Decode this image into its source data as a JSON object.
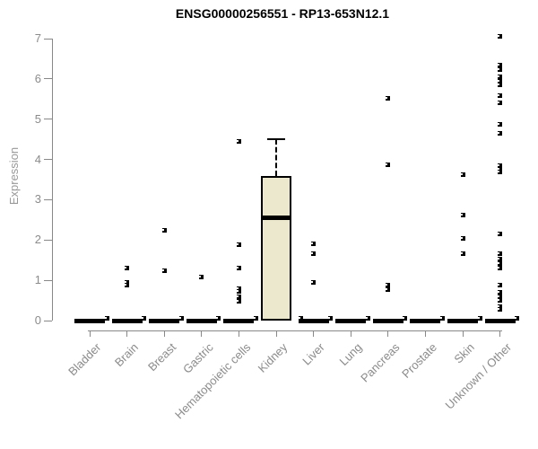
{
  "chart_data": {
    "type": "boxplot",
    "title": "ENSG00000256551 - RP13-653N12.1",
    "xlabel": "",
    "ylabel": "Expression",
    "ylim": [
      0,
      7
    ],
    "yticks": [
      0,
      1,
      2,
      3,
      4,
      5,
      6,
      7
    ],
    "grid": false,
    "legend": "none",
    "categories": [
      "Bladder",
      "Brain",
      "Breast",
      "Gastric",
      "Hematopoietic cells",
      "Kidney",
      "Liver",
      "Lung",
      "Pancreas",
      "Prostate",
      "Skin",
      "Unknown / Other"
    ],
    "groups": [
      {
        "label": "Bladder",
        "box": {
          "lo": 0,
          "q1": 0,
          "median": 0,
          "q3": 0,
          "hi": 0
        },
        "points": [
          {
            "v": 0.05,
            "dx": 19
          }
        ]
      },
      {
        "label": "Brain",
        "box": {
          "lo": 0,
          "q1": 0,
          "median": 0,
          "q3": 0,
          "hi": 0
        },
        "points": [
          {
            "v": 1.31
          },
          {
            "v": 0.95
          },
          {
            "v": 0.88
          },
          {
            "v": 0.05,
            "dx": 19
          }
        ]
      },
      {
        "label": "Breast",
        "box": {
          "lo": 0,
          "q1": 0,
          "median": 0,
          "q3": 0,
          "hi": 0
        },
        "points": [
          {
            "v": 2.23
          },
          {
            "v": 1.23
          },
          {
            "v": 0.05,
            "dx": 19
          }
        ]
      },
      {
        "label": "Gastric",
        "box": {
          "lo": 0,
          "q1": 0,
          "median": 0,
          "q3": 0,
          "hi": 0
        },
        "points": [
          {
            "v": 1.09
          },
          {
            "v": 0.05,
            "dx": 19
          }
        ]
      },
      {
        "label": "Hematopoietic cells",
        "box": {
          "lo": 0,
          "q1": 0,
          "median": 0,
          "q3": 0,
          "hi": 0
        },
        "points": [
          {
            "v": 4.45
          },
          {
            "v": 1.88
          },
          {
            "v": 1.31
          },
          {
            "v": 0.8
          },
          {
            "v": 0.72
          },
          {
            "v": 0.6
          },
          {
            "v": 0.48
          },
          {
            "v": 0.05,
            "dx": 19
          }
        ]
      },
      {
        "label": "Kidney",
        "box": {
          "lo": 0,
          "q1": 0,
          "median": 2.55,
          "q3": 3.6,
          "hi": 4.5
        },
        "points": [
          {
            "v": 0.05,
            "dx": 27
          }
        ]
      },
      {
        "label": "Liver",
        "box": {
          "lo": 0,
          "q1": 0,
          "median": 0,
          "q3": 0,
          "hi": 0
        },
        "points": [
          {
            "v": 1.9
          },
          {
            "v": 1.67
          },
          {
            "v": 0.94
          },
          {
            "v": 0.05,
            "dx": 19
          }
        ]
      },
      {
        "label": "Lung",
        "box": {
          "lo": 0,
          "q1": 0,
          "median": 0,
          "q3": 0,
          "hi": 0
        },
        "points": [
          {
            "v": 0.05,
            "dx": 19
          }
        ]
      },
      {
        "label": "Pancreas",
        "box": {
          "lo": 0,
          "q1": 0,
          "median": 0,
          "q3": 0,
          "hi": 0
        },
        "points": [
          {
            "v": 5.52
          },
          {
            "v": 3.86
          },
          {
            "v": 0.87
          },
          {
            "v": 0.78
          },
          {
            "v": 0.05,
            "dx": 19
          }
        ]
      },
      {
        "label": "Prostate",
        "box": {
          "lo": 0,
          "q1": 0,
          "median": 0,
          "q3": 0,
          "hi": 0
        },
        "points": [
          {
            "v": 0.05,
            "dx": 19
          }
        ]
      },
      {
        "label": "Skin",
        "box": {
          "lo": 0,
          "q1": 0,
          "median": 0,
          "q3": 0,
          "hi": 0
        },
        "points": [
          {
            "v": 3.63
          },
          {
            "v": 2.63
          },
          {
            "v": 2.03
          },
          {
            "v": 1.65
          },
          {
            "v": 0.05,
            "dx": 19
          }
        ]
      },
      {
        "label": "Unknown / Other",
        "box": {
          "lo": 0,
          "q1": 0,
          "median": 0,
          "q3": 0,
          "hi": 0
        },
        "points": [
          {
            "v": 7.05
          },
          {
            "v": 6.35
          },
          {
            "v": 6.22
          },
          {
            "v": 6.05
          },
          {
            "v": 5.95
          },
          {
            "v": 5.85
          },
          {
            "v": 5.58
          },
          {
            "v": 5.4
          },
          {
            "v": 4.88
          },
          {
            "v": 4.65
          },
          {
            "v": 3.85
          },
          {
            "v": 3.76
          },
          {
            "v": 3.68
          },
          {
            "v": 2.15
          },
          {
            "v": 1.65
          },
          {
            "v": 1.52
          },
          {
            "v": 1.42
          },
          {
            "v": 1.3
          },
          {
            "v": 0.89
          },
          {
            "v": 0.7
          },
          {
            "v": 0.6
          },
          {
            "v": 0.5
          },
          {
            "v": 0.34
          },
          {
            "v": 0.27
          },
          {
            "v": 0.05,
            "dx": 19
          }
        ]
      }
    ],
    "colors": {
      "box_fill": "#ece8cd",
      "box_border": "#000000",
      "axis": "#888888",
      "tick_label": "#8b8b8b",
      "muted_label": "#999999",
      "title": "#000000",
      "point": "#000000",
      "background": "#ffffff"
    }
  }
}
